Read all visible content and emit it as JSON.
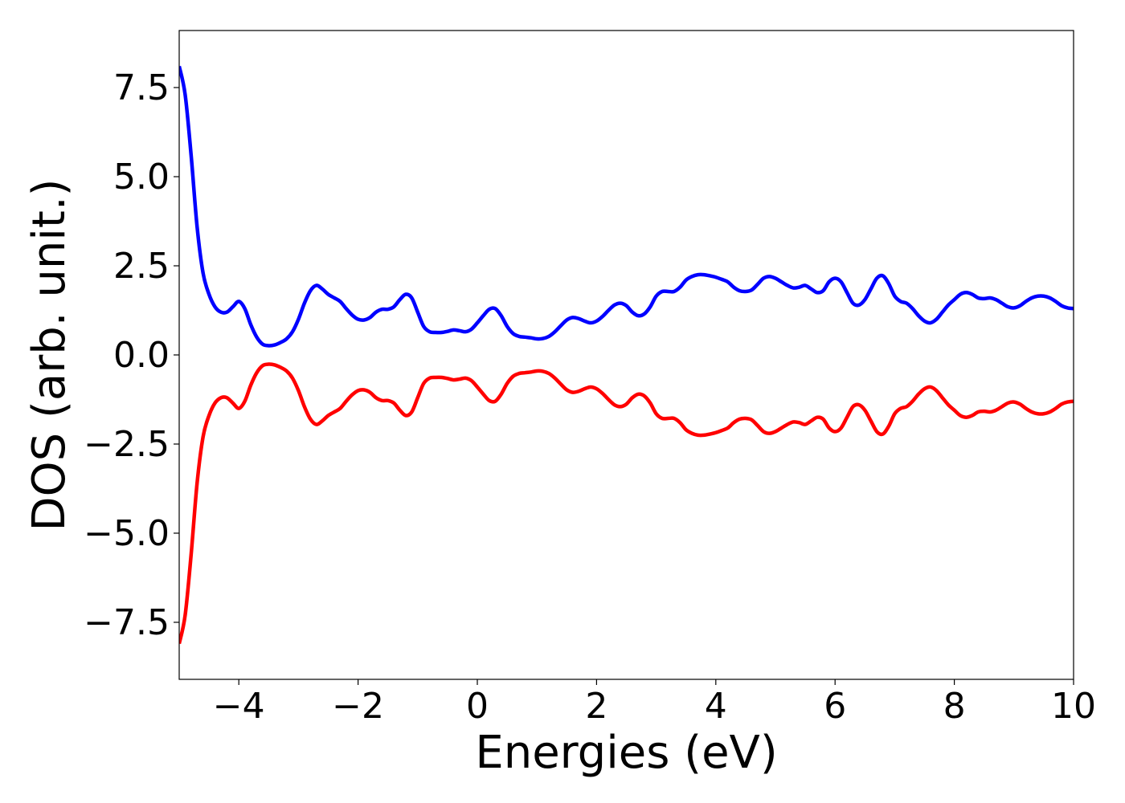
{
  "chart_data": {
    "type": "line",
    "title": "",
    "xlabel": "Energies (eV)",
    "ylabel": "DOS (arb. unit.)",
    "xlim": [
      -5,
      10
    ],
    "ylim": [
      -9.1,
      9.1
    ],
    "grid": false,
    "legend": "none",
    "x_ticks": [
      -4,
      -2,
      0,
      2,
      4,
      6,
      8,
      10
    ],
    "x_tick_labels": [
      "−4",
      "−2",
      "0",
      "2",
      "4",
      "6",
      "8",
      "10"
    ],
    "y_ticks": [
      7.5,
      5.0,
      2.5,
      0.0,
      -2.5,
      -5.0,
      -7.5
    ],
    "y_tick_labels": [
      "7.5",
      "5.0",
      "2.5",
      "0.0",
      "−2.5",
      "−5.0",
      "−7.5"
    ],
    "series": [
      {
        "color": "#0000ff",
        "points": [
          [
            -5.0,
            8.1
          ],
          [
            -4.9,
            7.3
          ],
          [
            -4.8,
            5.6
          ],
          [
            -4.7,
            3.6
          ],
          [
            -4.6,
            2.3
          ],
          [
            -4.5,
            1.7
          ],
          [
            -4.4,
            1.35
          ],
          [
            -4.3,
            1.2
          ],
          [
            -4.2,
            1.2
          ],
          [
            -4.1,
            1.35
          ],
          [
            -4.0,
            1.5
          ],
          [
            -3.9,
            1.3
          ],
          [
            -3.8,
            0.85
          ],
          [
            -3.7,
            0.5
          ],
          [
            -3.6,
            0.3
          ],
          [
            -3.5,
            0.26
          ],
          [
            -3.4,
            0.28
          ],
          [
            -3.3,
            0.35
          ],
          [
            -3.2,
            0.45
          ],
          [
            -3.1,
            0.65
          ],
          [
            -3.0,
            1.0
          ],
          [
            -2.9,
            1.45
          ],
          [
            -2.8,
            1.8
          ],
          [
            -2.7,
            1.95
          ],
          [
            -2.6,
            1.85
          ],
          [
            -2.5,
            1.7
          ],
          [
            -2.4,
            1.6
          ],
          [
            -2.3,
            1.5
          ],
          [
            -2.2,
            1.3
          ],
          [
            -2.1,
            1.12
          ],
          [
            -2.0,
            1.0
          ],
          [
            -1.9,
            0.98
          ],
          [
            -1.8,
            1.05
          ],
          [
            -1.7,
            1.2
          ],
          [
            -1.6,
            1.28
          ],
          [
            -1.5,
            1.28
          ],
          [
            -1.4,
            1.35
          ],
          [
            -1.3,
            1.55
          ],
          [
            -1.2,
            1.7
          ],
          [
            -1.1,
            1.6
          ],
          [
            -1.0,
            1.2
          ],
          [
            -0.9,
            0.8
          ],
          [
            -0.8,
            0.65
          ],
          [
            -0.7,
            0.63
          ],
          [
            -0.6,
            0.63
          ],
          [
            -0.5,
            0.66
          ],
          [
            -0.4,
            0.7
          ],
          [
            -0.3,
            0.68
          ],
          [
            -0.2,
            0.65
          ],
          [
            -0.1,
            0.72
          ],
          [
            0.0,
            0.9
          ],
          [
            0.1,
            1.1
          ],
          [
            0.2,
            1.28
          ],
          [
            0.3,
            1.3
          ],
          [
            0.4,
            1.1
          ],
          [
            0.5,
            0.8
          ],
          [
            0.6,
            0.6
          ],
          [
            0.7,
            0.52
          ],
          [
            0.8,
            0.5
          ],
          [
            0.9,
            0.48
          ],
          [
            1.0,
            0.45
          ],
          [
            1.1,
            0.46
          ],
          [
            1.2,
            0.52
          ],
          [
            1.3,
            0.65
          ],
          [
            1.4,
            0.82
          ],
          [
            1.5,
            0.98
          ],
          [
            1.6,
            1.05
          ],
          [
            1.7,
            1.02
          ],
          [
            1.8,
            0.95
          ],
          [
            1.9,
            0.9
          ],
          [
            2.0,
            0.95
          ],
          [
            2.1,
            1.08
          ],
          [
            2.2,
            1.25
          ],
          [
            2.3,
            1.4
          ],
          [
            2.4,
            1.45
          ],
          [
            2.5,
            1.38
          ],
          [
            2.6,
            1.2
          ],
          [
            2.7,
            1.1
          ],
          [
            2.8,
            1.15
          ],
          [
            2.9,
            1.35
          ],
          [
            3.0,
            1.65
          ],
          [
            3.1,
            1.78
          ],
          [
            3.2,
            1.78
          ],
          [
            3.3,
            1.78
          ],
          [
            3.4,
            1.9
          ],
          [
            3.5,
            2.1
          ],
          [
            3.6,
            2.2
          ],
          [
            3.7,
            2.25
          ],
          [
            3.8,
            2.25
          ],
          [
            3.9,
            2.22
          ],
          [
            4.0,
            2.18
          ],
          [
            4.1,
            2.12
          ],
          [
            4.2,
            2.05
          ],
          [
            4.3,
            1.9
          ],
          [
            4.4,
            1.8
          ],
          [
            4.5,
            1.78
          ],
          [
            4.6,
            1.82
          ],
          [
            4.7,
            1.98
          ],
          [
            4.8,
            2.15
          ],
          [
            4.9,
            2.2
          ],
          [
            5.0,
            2.15
          ],
          [
            5.1,
            2.05
          ],
          [
            5.2,
            1.95
          ],
          [
            5.3,
            1.88
          ],
          [
            5.4,
            1.9
          ],
          [
            5.5,
            1.95
          ],
          [
            5.6,
            1.85
          ],
          [
            5.7,
            1.75
          ],
          [
            5.8,
            1.8
          ],
          [
            5.9,
            2.05
          ],
          [
            6.0,
            2.15
          ],
          [
            6.1,
            2.05
          ],
          [
            6.2,
            1.75
          ],
          [
            6.3,
            1.45
          ],
          [
            6.4,
            1.4
          ],
          [
            6.5,
            1.55
          ],
          [
            6.6,
            1.85
          ],
          [
            6.7,
            2.15
          ],
          [
            6.8,
            2.22
          ],
          [
            6.9,
            2.0
          ],
          [
            7.0,
            1.65
          ],
          [
            7.1,
            1.5
          ],
          [
            7.2,
            1.45
          ],
          [
            7.3,
            1.3
          ],
          [
            7.4,
            1.1
          ],
          [
            7.5,
            0.95
          ],
          [
            7.6,
            0.9
          ],
          [
            7.7,
            1.0
          ],
          [
            7.8,
            1.2
          ],
          [
            7.9,
            1.4
          ],
          [
            8.0,
            1.55
          ],
          [
            8.1,
            1.7
          ],
          [
            8.2,
            1.75
          ],
          [
            8.3,
            1.7
          ],
          [
            8.4,
            1.6
          ],
          [
            8.5,
            1.58
          ],
          [
            8.6,
            1.6
          ],
          [
            8.7,
            1.55
          ],
          [
            8.8,
            1.45
          ],
          [
            8.9,
            1.35
          ],
          [
            9.0,
            1.32
          ],
          [
            9.1,
            1.38
          ],
          [
            9.2,
            1.5
          ],
          [
            9.3,
            1.6
          ],
          [
            9.4,
            1.65
          ],
          [
            9.5,
            1.65
          ],
          [
            9.6,
            1.6
          ],
          [
            9.7,
            1.5
          ],
          [
            9.8,
            1.38
          ],
          [
            9.9,
            1.32
          ],
          [
            10.0,
            1.3
          ]
        ]
      },
      {
        "color": "#ff0000",
        "points": [
          [
            -5.0,
            -8.1
          ],
          [
            -4.9,
            -7.3
          ],
          [
            -4.8,
            -5.6
          ],
          [
            -4.7,
            -3.6
          ],
          [
            -4.6,
            -2.3
          ],
          [
            -4.5,
            -1.7
          ],
          [
            -4.4,
            -1.35
          ],
          [
            -4.3,
            -1.2
          ],
          [
            -4.2,
            -1.2
          ],
          [
            -4.1,
            -1.35
          ],
          [
            -4.0,
            -1.5
          ],
          [
            -3.9,
            -1.3
          ],
          [
            -3.8,
            -0.85
          ],
          [
            -3.7,
            -0.5
          ],
          [
            -3.6,
            -0.3
          ],
          [
            -3.5,
            -0.26
          ],
          [
            -3.4,
            -0.28
          ],
          [
            -3.3,
            -0.35
          ],
          [
            -3.2,
            -0.45
          ],
          [
            -3.1,
            -0.65
          ],
          [
            -3.0,
            -1.0
          ],
          [
            -2.9,
            -1.45
          ],
          [
            -2.8,
            -1.8
          ],
          [
            -2.7,
            -1.95
          ],
          [
            -2.6,
            -1.85
          ],
          [
            -2.5,
            -1.7
          ],
          [
            -2.4,
            -1.6
          ],
          [
            -2.3,
            -1.5
          ],
          [
            -2.2,
            -1.3
          ],
          [
            -2.1,
            -1.12
          ],
          [
            -2.0,
            -1.0
          ],
          [
            -1.9,
            -0.98
          ],
          [
            -1.8,
            -1.05
          ],
          [
            -1.7,
            -1.2
          ],
          [
            -1.6,
            -1.28
          ],
          [
            -1.5,
            -1.28
          ],
          [
            -1.4,
            -1.35
          ],
          [
            -1.3,
            -1.55
          ],
          [
            -1.2,
            -1.7
          ],
          [
            -1.1,
            -1.6
          ],
          [
            -1.0,
            -1.2
          ],
          [
            -0.9,
            -0.8
          ],
          [
            -0.8,
            -0.65
          ],
          [
            -0.7,
            -0.63
          ],
          [
            -0.6,
            -0.63
          ],
          [
            -0.5,
            -0.66
          ],
          [
            -0.4,
            -0.7
          ],
          [
            -0.3,
            -0.68
          ],
          [
            -0.2,
            -0.65
          ],
          [
            -0.1,
            -0.72
          ],
          [
            0.0,
            -0.9
          ],
          [
            0.1,
            -1.1
          ],
          [
            0.2,
            -1.28
          ],
          [
            0.3,
            -1.3
          ],
          [
            0.4,
            -1.1
          ],
          [
            0.5,
            -0.8
          ],
          [
            0.6,
            -0.6
          ],
          [
            0.7,
            -0.52
          ],
          [
            0.8,
            -0.5
          ],
          [
            0.9,
            -0.48
          ],
          [
            1.0,
            -0.45
          ],
          [
            1.1,
            -0.46
          ],
          [
            1.2,
            -0.52
          ],
          [
            1.3,
            -0.65
          ],
          [
            1.4,
            -0.82
          ],
          [
            1.5,
            -0.98
          ],
          [
            1.6,
            -1.05
          ],
          [
            1.7,
            -1.02
          ],
          [
            1.8,
            -0.95
          ],
          [
            1.9,
            -0.9
          ],
          [
            2.0,
            -0.95
          ],
          [
            2.1,
            -1.08
          ],
          [
            2.2,
            -1.25
          ],
          [
            2.3,
            -1.4
          ],
          [
            2.4,
            -1.45
          ],
          [
            2.5,
            -1.38
          ],
          [
            2.6,
            -1.2
          ],
          [
            2.7,
            -1.1
          ],
          [
            2.8,
            -1.15
          ],
          [
            2.9,
            -1.35
          ],
          [
            3.0,
            -1.65
          ],
          [
            3.1,
            -1.78
          ],
          [
            3.2,
            -1.78
          ],
          [
            3.3,
            -1.78
          ],
          [
            3.4,
            -1.9
          ],
          [
            3.5,
            -2.1
          ],
          [
            3.6,
            -2.2
          ],
          [
            3.7,
            -2.25
          ],
          [
            3.8,
            -2.25
          ],
          [
            3.9,
            -2.22
          ],
          [
            4.0,
            -2.18
          ],
          [
            4.1,
            -2.12
          ],
          [
            4.2,
            -2.05
          ],
          [
            4.3,
            -1.9
          ],
          [
            4.4,
            -1.8
          ],
          [
            4.5,
            -1.78
          ],
          [
            4.6,
            -1.82
          ],
          [
            4.7,
            -1.98
          ],
          [
            4.8,
            -2.15
          ],
          [
            4.9,
            -2.2
          ],
          [
            5.0,
            -2.15
          ],
          [
            5.1,
            -2.05
          ],
          [
            5.2,
            -1.95
          ],
          [
            5.3,
            -1.88
          ],
          [
            5.4,
            -1.9
          ],
          [
            5.5,
            -1.95
          ],
          [
            5.6,
            -1.85
          ],
          [
            5.7,
            -1.75
          ],
          [
            5.8,
            -1.8
          ],
          [
            5.9,
            -2.05
          ],
          [
            6.0,
            -2.15
          ],
          [
            6.1,
            -2.05
          ],
          [
            6.2,
            -1.75
          ],
          [
            6.3,
            -1.45
          ],
          [
            6.4,
            -1.4
          ],
          [
            6.5,
            -1.55
          ],
          [
            6.6,
            -1.85
          ],
          [
            6.7,
            -2.15
          ],
          [
            6.8,
            -2.22
          ],
          [
            6.9,
            -2.0
          ],
          [
            7.0,
            -1.65
          ],
          [
            7.1,
            -1.5
          ],
          [
            7.2,
            -1.45
          ],
          [
            7.3,
            -1.3
          ],
          [
            7.4,
            -1.1
          ],
          [
            7.5,
            -0.95
          ],
          [
            7.6,
            -0.9
          ],
          [
            7.7,
            -1.0
          ],
          [
            7.8,
            -1.2
          ],
          [
            7.9,
            -1.4
          ],
          [
            8.0,
            -1.55
          ],
          [
            8.1,
            -1.7
          ],
          [
            8.2,
            -1.75
          ],
          [
            8.3,
            -1.7
          ],
          [
            8.4,
            -1.6
          ],
          [
            8.5,
            -1.58
          ],
          [
            8.6,
            -1.6
          ],
          [
            8.7,
            -1.55
          ],
          [
            8.8,
            -1.45
          ],
          [
            8.9,
            -1.35
          ],
          [
            9.0,
            -1.32
          ],
          [
            9.1,
            -1.38
          ],
          [
            9.2,
            -1.5
          ],
          [
            9.3,
            -1.6
          ],
          [
            9.4,
            -1.65
          ],
          [
            9.5,
            -1.65
          ],
          [
            9.6,
            -1.6
          ],
          [
            9.7,
            -1.5
          ],
          [
            9.8,
            -1.38
          ],
          [
            9.9,
            -1.32
          ],
          [
            10.0,
            -1.3
          ]
        ]
      }
    ]
  }
}
